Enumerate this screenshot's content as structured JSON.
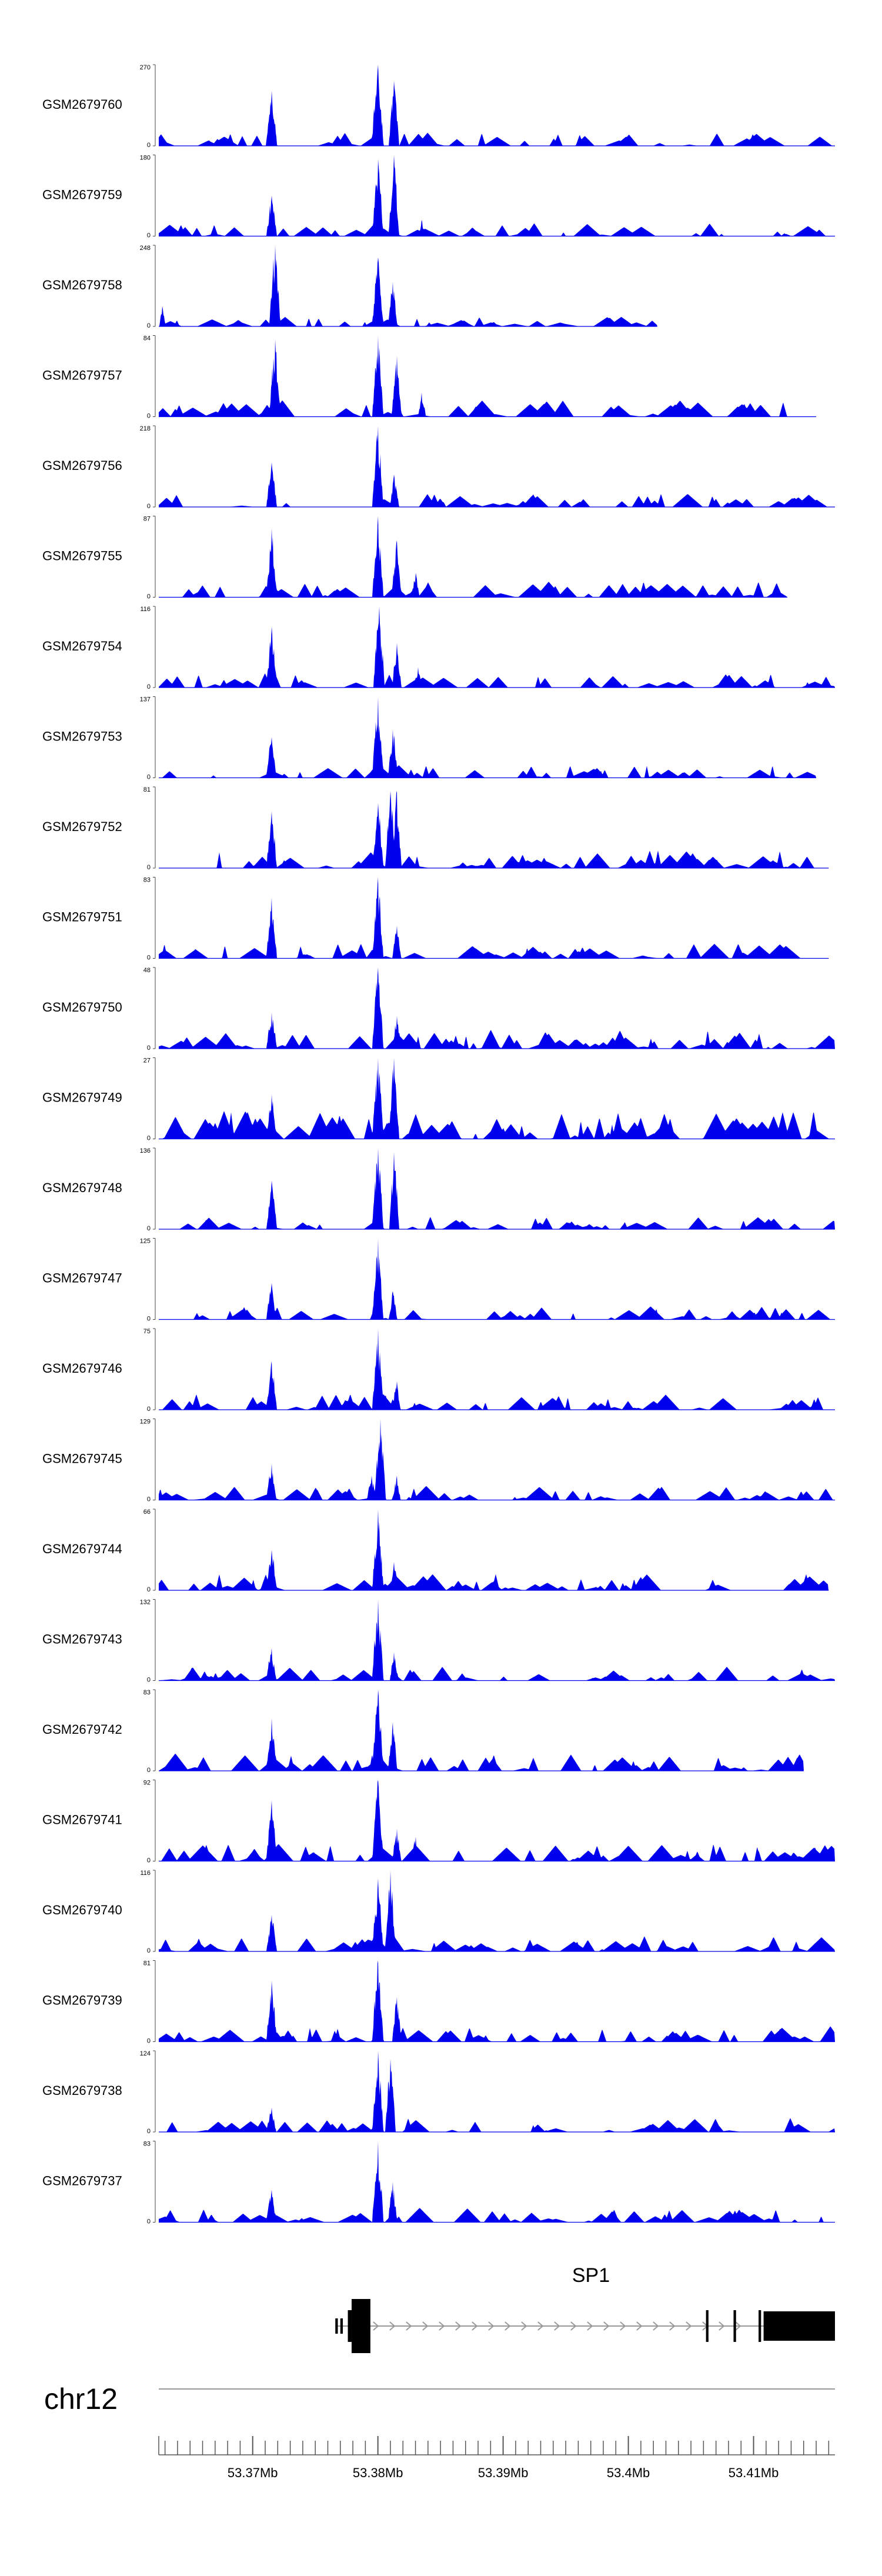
{
  "chart_data": {
    "type": "area",
    "title": "",
    "series_color": "#0000ee",
    "x_range": [
      53.3625,
      53.4165
    ],
    "tracks": [
      {
        "name": "GSM2679760",
        "ymax": "270",
        "ymin": "0",
        "end": 53.4165,
        "density": 0.35,
        "peaks": [
          [
            53.3715,
            0.68,
            0.55
          ],
          [
            53.38,
            1.0,
            0.6
          ],
          [
            53.3813,
            0.8,
            0.5
          ]
        ]
      },
      {
        "name": "GSM2679759",
        "ymax": "180",
        "ymin": "0",
        "end": 53.4165,
        "density": 0.35,
        "peaks": [
          [
            53.3715,
            0.5,
            0.5
          ],
          [
            53.38,
            0.95,
            0.55
          ],
          [
            53.3813,
            1.0,
            0.5
          ],
          [
            53.3835,
            0.2,
            0.2
          ]
        ]
      },
      {
        "name": "GSM2679758",
        "ymax": "248",
        "ymin": "0",
        "end": 53.4023,
        "density": 0.2,
        "peaks": [
          [
            53.3628,
            0.25,
            0.2
          ],
          [
            53.3718,
            1.0,
            0.55
          ],
          [
            53.38,
            0.85,
            0.55
          ],
          [
            53.3812,
            0.55,
            0.4
          ]
        ]
      },
      {
        "name": "GSM2679757",
        "ymax": "84",
        "ymin": "0",
        "end": 53.415,
        "density": 0.5,
        "peaks": [
          [
            53.3718,
            0.95,
            0.55
          ],
          [
            53.38,
            1.0,
            0.55
          ],
          [
            53.3815,
            0.75,
            0.45
          ],
          [
            53.3835,
            0.3,
            0.3
          ]
        ]
      },
      {
        "name": "GSM2679756",
        "ymax": "218",
        "ymin": "0",
        "end": 53.4165,
        "density": 0.35,
        "peaks": [
          [
            53.3715,
            0.55,
            0.5
          ],
          [
            53.38,
            1.0,
            0.55
          ],
          [
            53.3813,
            0.4,
            0.4
          ]
        ]
      },
      {
        "name": "GSM2679755",
        "ymax": "87",
        "ymin": "0",
        "end": 53.4127,
        "density": 0.45,
        "peaks": [
          [
            53.3715,
            0.85,
            0.5
          ],
          [
            53.38,
            1.0,
            0.55
          ],
          [
            53.3815,
            0.7,
            0.45
          ],
          [
            53.383,
            0.3,
            0.3
          ]
        ]
      },
      {
        "name": "GSM2679754",
        "ymax": "116",
        "ymin": "0",
        "end": 53.4165,
        "density": 0.4,
        "peaks": [
          [
            53.3715,
            0.75,
            0.5
          ],
          [
            53.3801,
            1.0,
            0.55
          ],
          [
            53.3815,
            0.55,
            0.4
          ],
          [
            53.3832,
            0.25,
            0.3
          ]
        ]
      },
      {
        "name": "GSM2679753",
        "ymax": "137",
        "ymin": "0",
        "end": 53.415,
        "density": 0.35,
        "peaks": [
          [
            53.3715,
            0.5,
            0.45
          ],
          [
            53.38,
            1.0,
            0.55
          ],
          [
            53.3812,
            0.6,
            0.45
          ]
        ]
      },
      {
        "name": "GSM2679752",
        "ymax": "81",
        "ymin": "0",
        "end": 53.416,
        "density": 0.55,
        "peaks": [
          [
            53.3715,
            0.7,
            0.5
          ],
          [
            53.38,
            0.8,
            0.5
          ],
          [
            53.381,
            0.95,
            0.5
          ],
          [
            53.3815,
            0.95,
            0.45
          ]
        ]
      },
      {
        "name": "GSM2679751",
        "ymax": "83",
        "ymin": "0",
        "end": 53.416,
        "density": 0.45,
        "peaks": [
          [
            53.3715,
            0.75,
            0.5
          ],
          [
            53.38,
            1.0,
            0.55
          ],
          [
            53.3815,
            0.4,
            0.4
          ]
        ]
      },
      {
        "name": "GSM2679750",
        "ymax": "48",
        "ymin": "0",
        "end": 53.4165,
        "density": 0.6,
        "peaks": [
          [
            53.3715,
            0.45,
            0.5
          ],
          [
            53.38,
            1.0,
            0.55
          ],
          [
            53.3815,
            0.4,
            0.4
          ]
        ]
      },
      {
        "name": "GSM2679749",
        "ymax": "27",
        "ymin": "0",
        "end": 53.4165,
        "density": 1.0,
        "peaks": [
          [
            53.3715,
            0.55,
            0.5
          ],
          [
            53.38,
            1.0,
            0.55
          ],
          [
            53.3813,
            1.0,
            0.5
          ]
        ]
      },
      {
        "name": "GSM2679748",
        "ymax": "136",
        "ymin": "0",
        "end": 53.4165,
        "density": 0.35,
        "peaks": [
          [
            53.3715,
            0.6,
            0.5
          ],
          [
            53.38,
            1.0,
            0.55
          ],
          [
            53.3813,
            0.95,
            0.45
          ]
        ]
      },
      {
        "name": "GSM2679747",
        "ymax": "125",
        "ymin": "0",
        "end": 53.4165,
        "density": 0.35,
        "peaks": [
          [
            53.3715,
            0.45,
            0.45
          ],
          [
            53.38,
            1.0,
            0.55
          ],
          [
            53.3812,
            0.35,
            0.35
          ]
        ]
      },
      {
        "name": "GSM2679746",
        "ymax": "75",
        "ymin": "0",
        "end": 53.4165,
        "density": 0.5,
        "peaks": [
          [
            53.3715,
            0.6,
            0.5
          ],
          [
            53.38,
            1.0,
            0.55
          ],
          [
            53.3815,
            0.35,
            0.35
          ]
        ]
      },
      {
        "name": "GSM2679745",
        "ymax": "129",
        "ymin": "0",
        "end": 53.4165,
        "density": 0.4,
        "peaks": [
          [
            53.3715,
            0.45,
            0.45
          ],
          [
            53.3795,
            0.3,
            0.4
          ],
          [
            53.3802,
            1.0,
            0.55
          ],
          [
            53.3815,
            0.3,
            0.3
          ]
        ]
      },
      {
        "name": "GSM2679744",
        "ymax": "66",
        "ymin": "0",
        "end": 53.416,
        "density": 0.5,
        "peaks": [
          [
            53.3715,
            0.5,
            0.5
          ],
          [
            53.38,
            1.0,
            0.55
          ],
          [
            53.3813,
            0.35,
            0.35
          ]
        ]
      },
      {
        "name": "GSM2679743",
        "ymax": "132",
        "ymin": "0",
        "end": 53.4165,
        "density": 0.4,
        "peaks": [
          [
            53.3715,
            0.4,
            0.45
          ],
          [
            53.38,
            1.0,
            0.55
          ],
          [
            53.3813,
            0.35,
            0.35
          ]
        ]
      },
      {
        "name": "GSM2679742",
        "ymax": "83",
        "ymin": "0",
        "end": 53.414,
        "density": 0.55,
        "peaks": [
          [
            53.3715,
            0.65,
            0.5
          ],
          [
            53.38,
            1.0,
            0.55
          ],
          [
            53.3812,
            0.6,
            0.4
          ]
        ]
      },
      {
        "name": "GSM2679741",
        "ymax": "92",
        "ymin": "0",
        "end": 53.4165,
        "density": 0.55,
        "peaks": [
          [
            53.3715,
            0.75,
            0.5
          ],
          [
            53.38,
            1.0,
            0.55
          ],
          [
            53.3815,
            0.4,
            0.4
          ],
          [
            53.383,
            0.3,
            0.3
          ]
        ]
      },
      {
        "name": "GSM2679740",
        "ymax": "116",
        "ymin": "0",
        "end": 53.4165,
        "density": 0.45,
        "peaks": [
          [
            53.3715,
            0.45,
            0.5
          ],
          [
            53.38,
            0.9,
            0.55
          ],
          [
            53.381,
            1.0,
            0.5
          ]
        ]
      },
      {
        "name": "GSM2679739",
        "ymax": "81",
        "ymin": "0",
        "end": 53.4165,
        "density": 0.45,
        "peaks": [
          [
            53.3715,
            0.75,
            0.5
          ],
          [
            53.38,
            1.0,
            0.55
          ],
          [
            53.3815,
            0.55,
            0.4
          ]
        ]
      },
      {
        "name": "GSM2679738",
        "ymax": "124",
        "ymin": "0",
        "end": 53.4165,
        "density": 0.4,
        "peaks": [
          [
            53.3715,
            0.3,
            0.45
          ],
          [
            53.38,
            1.0,
            0.55
          ],
          [
            53.381,
            0.9,
            0.5
          ]
        ]
      },
      {
        "name": "GSM2679737",
        "ymax": "83",
        "ymin": "0",
        "end": 53.4165,
        "density": 0.4,
        "peaks": [
          [
            53.3715,
            0.4,
            0.45
          ],
          [
            53.38,
            1.0,
            0.55
          ],
          [
            53.3812,
            0.5,
            0.4
          ]
        ]
      }
    ],
    "gene": {
      "name": "SP1",
      "start": 53.3766,
      "end": 53.4165,
      "strand": "+",
      "exons": [
        [
          53.3766,
          53.3768,
          "small"
        ],
        [
          53.377,
          53.3772,
          "small"
        ],
        [
          53.3776,
          53.3779,
          "medium"
        ],
        [
          53.3779,
          53.3794,
          "large"
        ],
        [
          53.4062,
          53.4064,
          "medium"
        ],
        [
          53.4084,
          53.4086,
          "medium"
        ],
        [
          53.4104,
          53.4106,
          "medium"
        ],
        [
          53.4108,
          53.4165,
          "large"
        ]
      ]
    },
    "chromosome": "chr12",
    "axis": {
      "ticks": [
        53.37,
        53.38,
        53.39,
        53.4,
        53.41
      ],
      "tick_labels": [
        "53.37Mb",
        "53.38Mb",
        "53.39Mb",
        "53.4Mb",
        "53.41Mb"
      ],
      "minor_step": 0.001
    }
  }
}
